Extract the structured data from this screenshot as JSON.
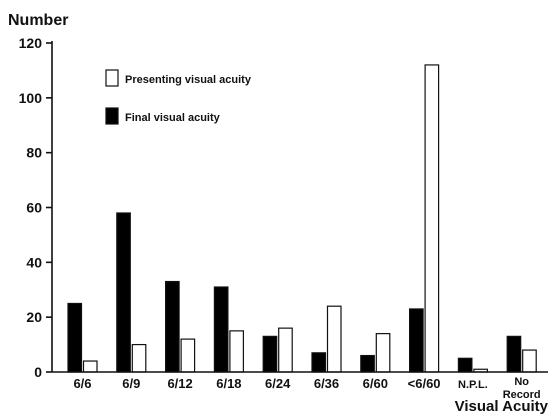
{
  "chart_data": {
    "type": "bar",
    "ylabel": "Number",
    "xlabel": "Visual Acuity",
    "ylim": [
      0,
      120
    ],
    "yticks": [
      "0",
      "20",
      "40",
      "60",
      "80",
      "100",
      "120"
    ],
    "grid": false,
    "legend_position": "top-left",
    "categories": [
      "6/6",
      "6/9",
      "6/12",
      "6/18",
      "6/24",
      "6/36",
      "6/60",
      "<6/60",
      "N.P.L.",
      "No Record"
    ],
    "series": [
      {
        "name": "Final visual acuity",
        "fill": "#000000",
        "values": [
          25,
          58,
          33,
          31,
          13,
          7,
          6,
          23,
          5,
          13
        ]
      },
      {
        "name": "Presenting visual acuity",
        "fill": "#ffffff",
        "values": [
          4,
          10,
          12,
          15,
          16,
          24,
          14,
          112,
          1,
          8
        ]
      }
    ]
  }
}
